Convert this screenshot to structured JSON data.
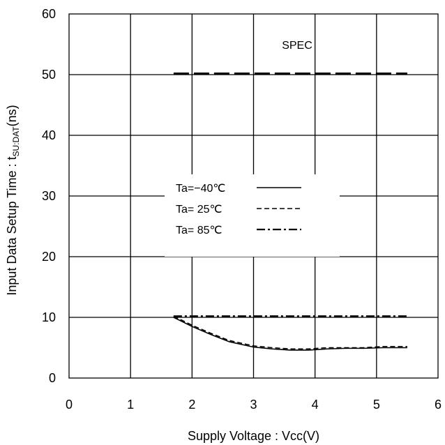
{
  "chart_data": {
    "type": "line",
    "title": "",
    "xlabel": "Supply Voltage : Vcc(V)",
    "ylabel_prefix": "Input Data Setup Time : t",
    "ylabel_sub": "SU:DAT",
    "ylabel_suffix": "(ns)",
    "xlim": [
      0,
      6
    ],
    "ylim": [
      0,
      60
    ],
    "xticks": [
      "0",
      "1",
      "2",
      "3",
      "4",
      "5",
      "6"
    ],
    "yticks": [
      "0",
      "10",
      "20",
      "30",
      "40",
      "50",
      "60"
    ],
    "grid": true,
    "legend_position": "center-left",
    "series": [
      {
        "name": "Ta=−40℃",
        "style": "solid",
        "x": [
          1.7,
          2.0,
          2.3,
          2.6,
          3.0,
          3.3,
          3.6,
          3.9,
          4.2,
          4.5,
          4.8,
          5.1,
          5.5
        ],
        "y": [
          10.0,
          8.5,
          7.2,
          6.0,
          5.1,
          4.8,
          4.6,
          4.6,
          4.8,
          4.9,
          4.9,
          5.0,
          5.0
        ]
      },
      {
        "name": "Ta= 25℃",
        "style": "dashed",
        "x": [
          1.7,
          2.0,
          2.3,
          2.6,
          3.0,
          3.3,
          3.6,
          3.9,
          4.2,
          4.5,
          4.8,
          5.1,
          5.5
        ],
        "y": [
          10.2,
          8.7,
          7.4,
          6.2,
          5.3,
          5.0,
          4.8,
          4.8,
          5.0,
          5.0,
          5.0,
          5.2,
          5.2
        ]
      },
      {
        "name": "Ta= 85℃",
        "style": "dashdot",
        "x": [
          1.7,
          5.5
        ],
        "y": [
          10.2,
          10.2
        ]
      }
    ],
    "spec": {
      "label": "SPEC",
      "style": "long-dash",
      "x": [
        1.7,
        5.5
      ],
      "y": [
        50.2,
        50.2
      ]
    }
  }
}
